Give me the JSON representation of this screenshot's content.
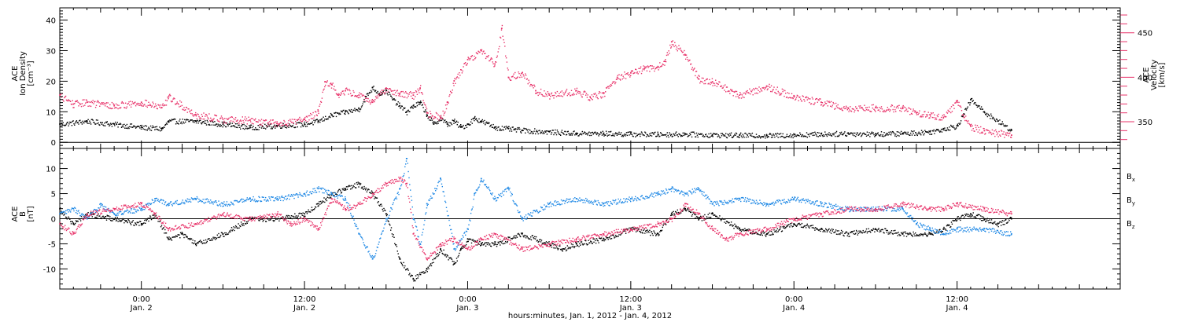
{
  "xlabel": "hours:minutes, Jan.  1, 2012 - Jan.  4, 2012",
  "xticks": [
    {
      "t": 24,
      "time": "0:00",
      "date": "Jan. 2"
    },
    {
      "t": 36,
      "time": "12:00",
      "date": "Jan. 2"
    },
    {
      "t": 48,
      "time": "0:00",
      "date": "Jan. 3"
    },
    {
      "t": 60,
      "time": "12:00",
      "date": "Jan. 3"
    },
    {
      "t": 72,
      "time": "0:00",
      "date": "Jan. 4"
    },
    {
      "t": 84,
      "time": "12:00",
      "date": "Jan. 4"
    }
  ],
  "colors": {
    "black": "#000000",
    "pink": "#e8336a",
    "blue": "#1e88e5"
  },
  "chart_data": [
    {
      "type": "scatter",
      "xlim": [
        18.0,
        96.0
      ],
      "ylim": [
        -2,
        44
      ],
      "ylabel": [
        "ACE",
        "Ion Density",
        "[cm⁻³]"
      ],
      "ylabel_right": [
        "ACE",
        "Velocity",
        "[km/s]"
      ],
      "y_ticks": [
        0,
        10,
        20,
        30,
        40
      ],
      "y2lim": [
        320,
        478
      ],
      "y2_ticks": [
        350,
        400,
        450
      ],
      "series": [
        {
          "axis": "left",
          "color": "black",
          "x": [
            18.0,
            20,
            22,
            24,
            25.5,
            26,
            28,
            30,
            32,
            34,
            36,
            37,
            38,
            39,
            40,
            40.5,
            41,
            41.5,
            42,
            42.5,
            43,
            43.5,
            44,
            44.5,
            45,
            45.5,
            46,
            46.5,
            47,
            47.5,
            48,
            48.5,
            49,
            50,
            51,
            52,
            54,
            56,
            58,
            60,
            62,
            64,
            66,
            68,
            70,
            72,
            74,
            76,
            78,
            80,
            82,
            83,
            84,
            85,
            86,
            87,
            88
          ],
          "y": [
            6,
            7,
            6,
            5,
            4.5,
            7,
            7,
            6,
            5,
            5.5,
            6,
            7,
            9,
            10,
            11,
            15,
            18,
            16,
            17,
            14,
            12,
            10,
            12,
            13,
            9,
            6,
            8,
            6,
            7,
            5,
            6,
            8,
            7,
            5,
            4.5,
            4,
            3.5,
            3,
            3,
            2.8,
            2.7,
            2.8,
            2.5,
            2.4,
            2.3,
            2.5,
            2.8,
            3,
            2.8,
            3,
            3.5,
            4.5,
            5.5,
            14,
            10,
            7,
            4
          ]
        },
        {
          "axis": "right",
          "color": "pink",
          "x": [
            18.0,
            19,
            20,
            22,
            24,
            25.5,
            26,
            28,
            30,
            32,
            34,
            36,
            37,
            37.5,
            38,
            38.5,
            39,
            40,
            41,
            42,
            43,
            44,
            44.5,
            45,
            46,
            46.5,
            47,
            48,
            49,
            50,
            50.5,
            51,
            52,
            53,
            54,
            56,
            57,
            58,
            59,
            60,
            61,
            62,
            62.5,
            63,
            64,
            65,
            66,
            68,
            70,
            72,
            74,
            76,
            78,
            80,
            81,
            82,
            83,
            84,
            84.5,
            85,
            86,
            88
          ],
          "y": [
            380,
            370,
            372,
            368,
            372,
            366,
            378,
            358,
            353,
            352,
            348,
            353,
            362,
            395,
            392,
            380,
            385,
            380,
            372,
            388,
            382,
            380,
            388,
            360,
            355,
            372,
            396,
            420,
            430,
            415,
            455,
            400,
            405,
            385,
            380,
            385,
            378,
            382,
            400,
            405,
            410,
            412,
            418,
            440,
            425,
            398,
            395,
            380,
            390,
            378,
            372,
            365,
            366,
            365,
            360,
            358,
            355,
            372,
            355,
            345,
            340,
            335
          ]
        }
      ]
    },
    {
      "type": "scatter",
      "xlim": [
        18.0,
        96.0
      ],
      "ylim": [
        -14,
        14
      ],
      "ylabel": [
        "ACE",
        "B",
        "[nT]"
      ],
      "y_ticks": [
        -10,
        -5,
        0,
        5,
        10
      ],
      "legend": [
        {
          "label": "B",
          "sub": "x",
          "color": "black"
        },
        {
          "label": "B",
          "sub": "y",
          "color": "blue"
        },
        {
          "label": "B",
          "sub": "z",
          "color": "pink"
        }
      ],
      "series": [
        {
          "name": "Bx",
          "color": "black",
          "x": [
            18.0,
            19,
            20,
            22,
            24,
            25,
            26,
            27,
            28,
            30,
            32,
            34,
            36,
            37,
            38,
            39,
            40,
            41,
            42,
            43,
            44,
            45,
            46,
            47,
            47.5,
            48,
            49,
            50,
            52,
            54,
            55,
            56,
            58,
            60,
            62,
            63,
            64,
            65,
            66,
            68,
            70,
            72,
            74,
            76,
            78,
            80,
            82,
            83,
            84,
            85,
            86,
            87,
            88
          ],
          "y": [
            2,
            -1,
            1,
            0,
            -1,
            1,
            -4,
            -3,
            -5,
            -3,
            0,
            0,
            1,
            3,
            5,
            6,
            7,
            5,
            1,
            -8,
            -12,
            -10,
            -6,
            -9,
            -6,
            -4,
            -5,
            -5,
            -3,
            -5,
            -6,
            -5,
            -4,
            -2,
            -3,
            1,
            2,
            0,
            1,
            -2,
            -3,
            -1,
            -2,
            -3,
            -2,
            -3,
            -3,
            -2,
            0,
            1,
            0,
            -1,
            0
          ]
        },
        {
          "name": "By",
          "color": "blue",
          "x": [
            18.0,
            19,
            20,
            21,
            22,
            24,
            25,
            26,
            28,
            30,
            32,
            34,
            36,
            37,
            38,
            39,
            40,
            41,
            42,
            43,
            43.5,
            44,
            44.5,
            45,
            46,
            47,
            48,
            48.5,
            49,
            50,
            51,
            52,
            54,
            56,
            58,
            60,
            62,
            63,
            64,
            65,
            66,
            68,
            70,
            72,
            74,
            76,
            78,
            80,
            81,
            82,
            83,
            84,
            86,
            88
          ],
          "y": [
            1,
            2,
            0,
            3,
            1,
            2,
            4,
            3,
            4,
            3,
            4,
            4,
            5,
            6,
            5,
            4,
            -3,
            -8,
            0,
            6,
            12,
            0,
            -5,
            3,
            8,
            -6,
            -2,
            5,
            8,
            4,
            6,
            0,
            3,
            4,
            3,
            4,
            5,
            6,
            5,
            6,
            3,
            4,
            3,
            4,
            3,
            2,
            2,
            2,
            -1,
            -2,
            -3,
            -2,
            -2,
            -3
          ]
        },
        {
          "name": "Bz",
          "color": "pink",
          "x": [
            18.0,
            19,
            20,
            22,
            24,
            25,
            26,
            28,
            30,
            32,
            34,
            35,
            36,
            37,
            38,
            39,
            40,
            41,
            42,
            43,
            43.5,
            44,
            45,
            46,
            47,
            48,
            49,
            50,
            52,
            54,
            56,
            58,
            60,
            62,
            63,
            64,
            65,
            66,
            67,
            68,
            70,
            72,
            74,
            76,
            78,
            80,
            82,
            83,
            84,
            86,
            88
          ],
          "y": [
            -1,
            -3,
            1,
            2,
            3,
            1,
            -2,
            -1,
            1,
            0,
            1,
            -1,
            0,
            -2,
            4,
            2,
            3,
            5,
            7,
            8,
            7,
            -3,
            -8,
            -5,
            -4,
            -6,
            -4,
            -3,
            -6,
            -5,
            -4,
            -3,
            -2,
            -1,
            0,
            3,
            1,
            -2,
            -4,
            -3,
            -2,
            0,
            1,
            2,
            2,
            3,
            2,
            2,
            3,
            2,
            1
          ]
        }
      ]
    }
  ]
}
